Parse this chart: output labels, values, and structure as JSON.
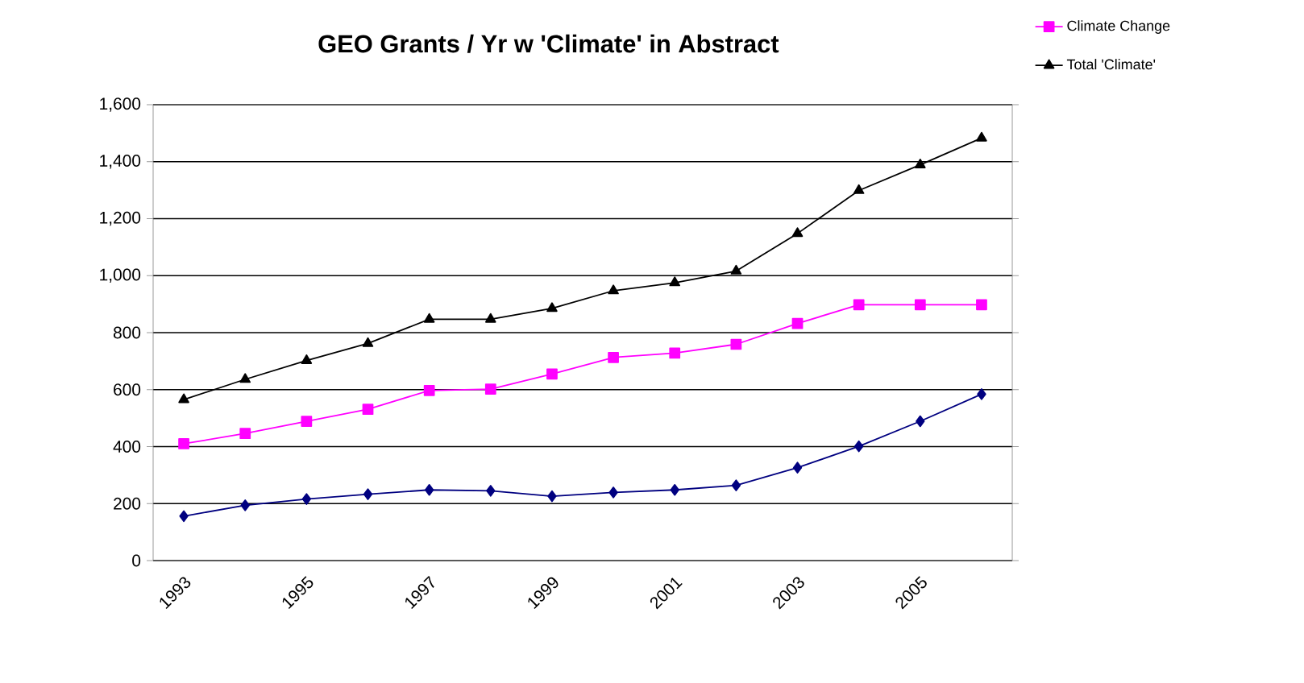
{
  "chart_data": {
    "type": "line",
    "title": "GEO Grants / Yr w 'Climate' in Abstract",
    "categories": [
      "1993",
      null,
      "1995",
      null,
      "1997",
      null,
      "1999",
      null,
      "2001",
      null,
      "2003",
      null,
      "2005",
      null
    ],
    "series": [
      {
        "color": "#000080",
        "marker": "diamond",
        "values": [
          156,
          194,
          216,
          233,
          248,
          245,
          226,
          239,
          248,
          264,
          326,
          401,
          489,
          584
        ]
      },
      {
        "name": "Climate Change",
        "color": "#ff00ff",
        "marker": "square",
        "values": [
          410,
          446,
          489,
          531,
          597,
          602,
          655,
          713,
          728,
          759,
          832,
          898,
          898,
          898
        ]
      },
      {
        "name": "Total 'Climate'",
        "color": "#000000",
        "marker": "triangle",
        "values": [
          565,
          636,
          702,
          762,
          847,
          847,
          885,
          947,
          975,
          1016,
          1148,
          1299,
          1389,
          1483
        ]
      }
    ],
    "ylim": [
      0,
      1600
    ],
    "yticks": [
      0,
      200,
      400,
      600,
      800,
      {
        "value": 1000,
        "label": "1,000"
      },
      {
        "value": 1200,
        "label": "1,200"
      },
      {
        "value": 1400,
        "label": "1,400"
      },
      {
        "value": 1600,
        "label": "1,600"
      }
    ],
    "grid": "y",
    "legend": "top right",
    "line_style": "solid"
  }
}
